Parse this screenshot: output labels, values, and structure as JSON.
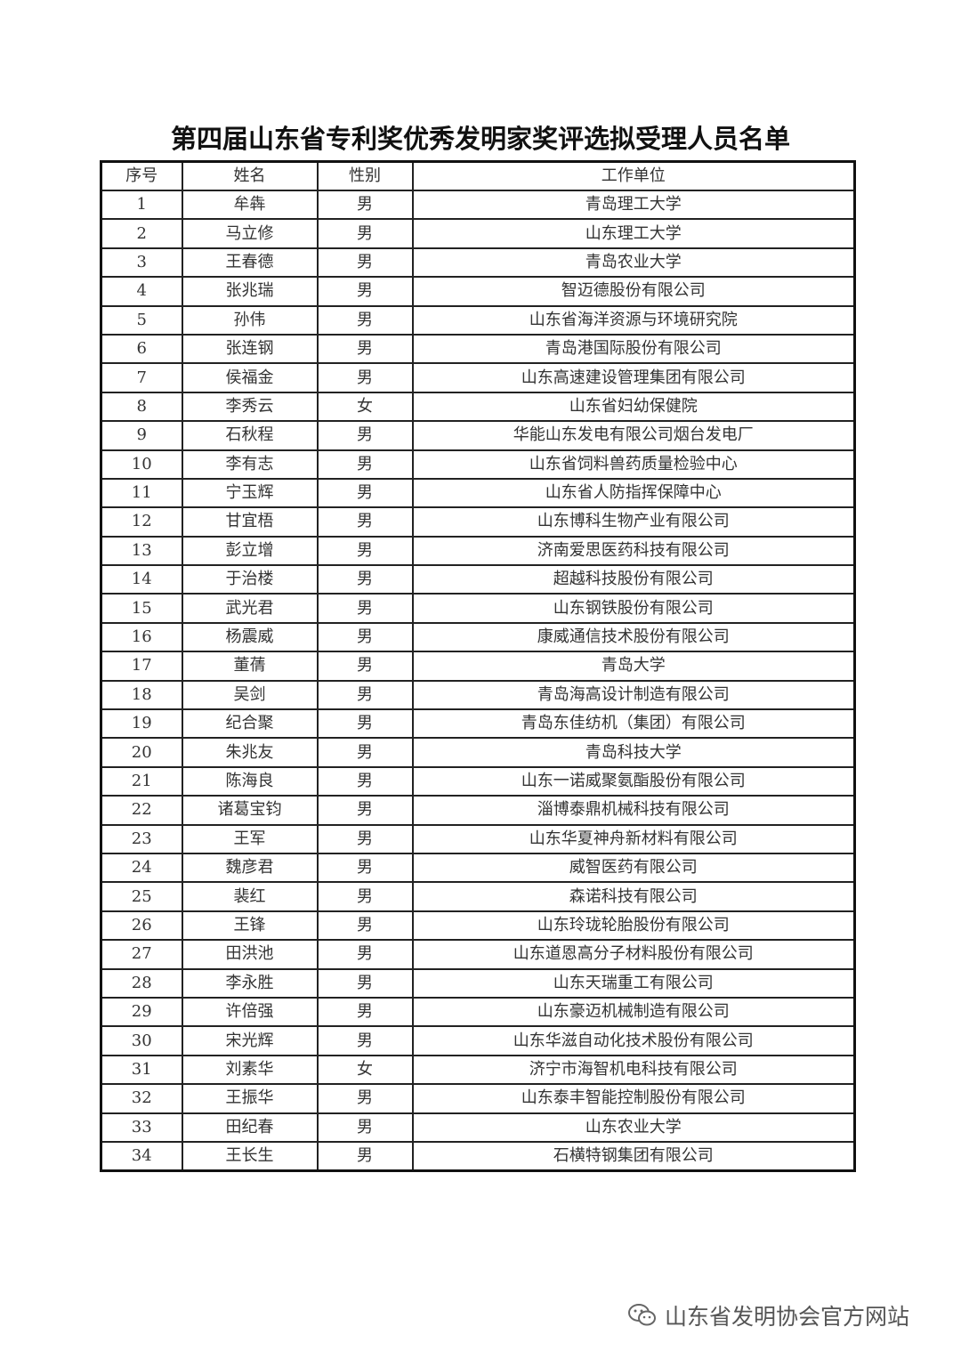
{
  "title": "第四届山东省专利奖优秀发明家奖评选拟受理人员名单",
  "table": {
    "headers": [
      "序号",
      "姓名",
      "性别",
      "工作单位"
    ],
    "rows": [
      [
        "1",
        "牟犇",
        "男",
        "青岛理工大学"
      ],
      [
        "2",
        "马立修",
        "男",
        "山东理工大学"
      ],
      [
        "3",
        "王春德",
        "男",
        "青岛农业大学"
      ],
      [
        "4",
        "张兆瑞",
        "男",
        "智迈德股份有限公司"
      ],
      [
        "5",
        "孙伟",
        "男",
        "山东省海洋资源与环境研究院"
      ],
      [
        "6",
        "张连钢",
        "男",
        "青岛港国际股份有限公司"
      ],
      [
        "7",
        "侯福金",
        "男",
        "山东高速建设管理集团有限公司"
      ],
      [
        "8",
        "李秀云",
        "女",
        "山东省妇幼保健院"
      ],
      [
        "9",
        "石秋程",
        "男",
        "华能山东发电有限公司烟台发电厂"
      ],
      [
        "10",
        "李有志",
        "男",
        "山东省饲料兽药质量检验中心"
      ],
      [
        "11",
        "宁玉辉",
        "男",
        "山东省人防指挥保障中心"
      ],
      [
        "12",
        "甘宜梧",
        "男",
        "山东博科生物产业有限公司"
      ],
      [
        "13",
        "彭立增",
        "男",
        "济南爱思医药科技有限公司"
      ],
      [
        "14",
        "于治楼",
        "男",
        "超越科技股份有限公司"
      ],
      [
        "15",
        "武光君",
        "男",
        "山东钢铁股份有限公司"
      ],
      [
        "16",
        "杨震威",
        "男",
        "康威通信技术股份有限公司"
      ],
      [
        "17",
        "董蒨",
        "男",
        "青岛大学"
      ],
      [
        "18",
        "吴剑",
        "男",
        "青岛海高设计制造有限公司"
      ],
      [
        "19",
        "纪合聚",
        "男",
        "青岛东佳纺机（集团）有限公司"
      ],
      [
        "20",
        "朱兆友",
        "男",
        "青岛科技大学"
      ],
      [
        "21",
        "陈海良",
        "男",
        "山东一诺威聚氨酯股份有限公司"
      ],
      [
        "22",
        "诸葛宝钧",
        "男",
        "淄博泰鼎机械科技有限公司"
      ],
      [
        "23",
        "王军",
        "男",
        "山东华夏神舟新材料有限公司"
      ],
      [
        "24",
        "魏彦君",
        "男",
        "威智医药有限公司"
      ],
      [
        "25",
        "裴红",
        "男",
        "森诺科技有限公司"
      ],
      [
        "26",
        "王锋",
        "男",
        "山东玲珑轮胎股份有限公司"
      ],
      [
        "27",
        "田洪池",
        "男",
        "山东道恩高分子材料股份有限公司"
      ],
      [
        "28",
        "李永胜",
        "男",
        "山东天瑞重工有限公司"
      ],
      [
        "29",
        "许倍强",
        "男",
        "山东豪迈机械制造有限公司"
      ],
      [
        "30",
        "宋光辉",
        "男",
        "山东华滋自动化技术股份有限公司"
      ],
      [
        "31",
        "刘素华",
        "女",
        "济宁市海智机电科技有限公司"
      ],
      [
        "32",
        "王振华",
        "男",
        "山东泰丰智能控制股份有限公司"
      ],
      [
        "33",
        "田纪春",
        "男",
        "山东农业大学"
      ],
      [
        "34",
        "王长生",
        "男",
        "石横特钢集团有限公司"
      ]
    ]
  },
  "watermark": {
    "icon": "wechat-icon",
    "text": "山东省发明协会官方网站"
  }
}
